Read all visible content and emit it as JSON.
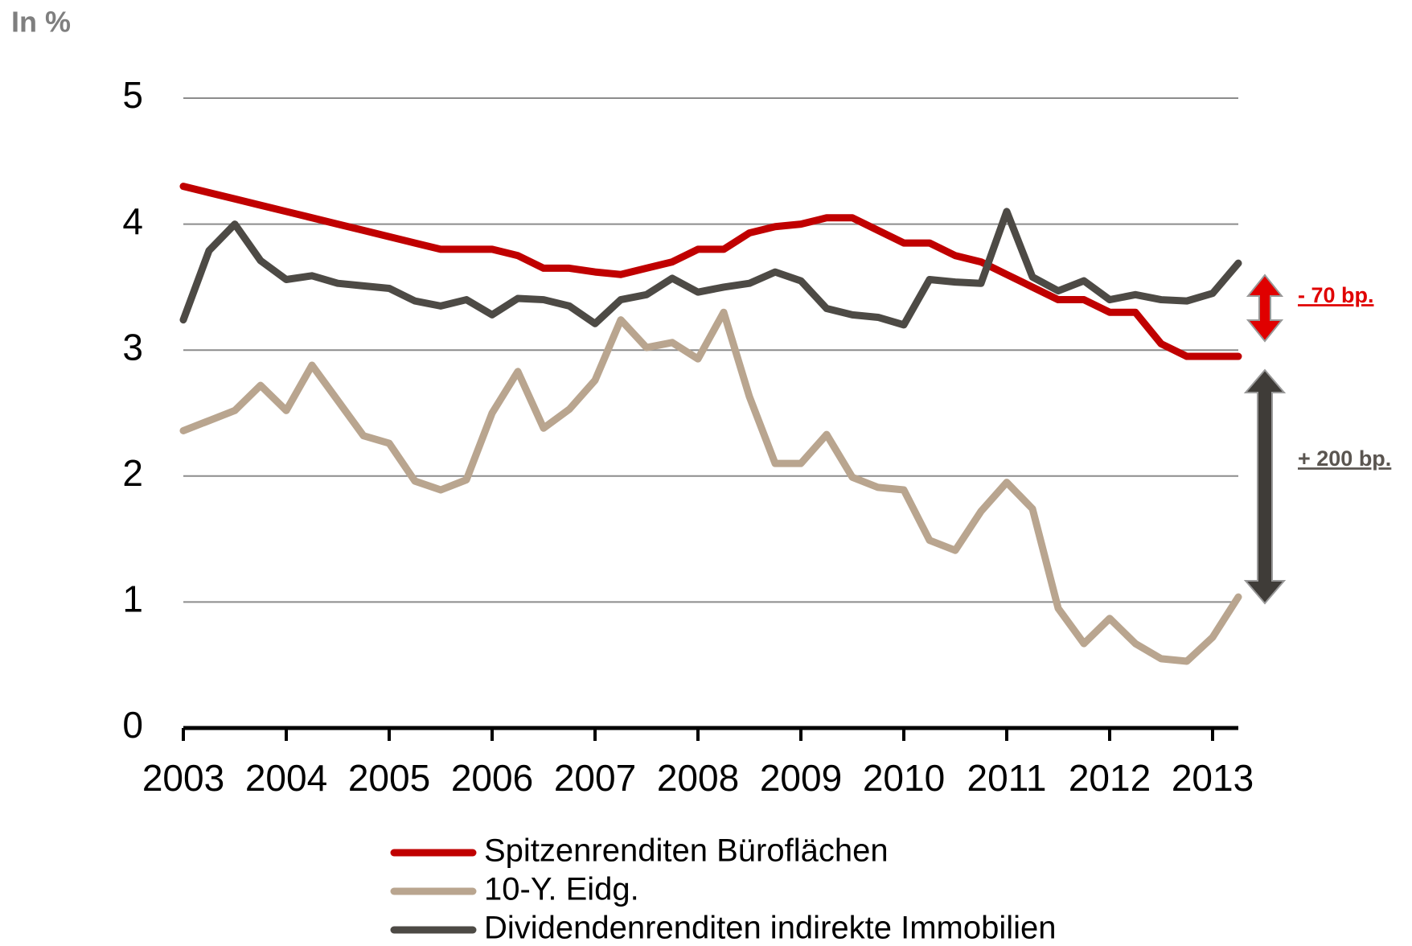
{
  "chart_data": {
    "type": "line",
    "title": "In %",
    "x": [
      2003,
      2003.25,
      2003.5,
      2003.75,
      2004,
      2004.25,
      2004.5,
      2004.75,
      2005,
      2005.25,
      2005.5,
      2005.75,
      2006,
      2006.25,
      2006.5,
      2006.75,
      2007,
      2007.25,
      2007.5,
      2007.75,
      2008,
      2008.25,
      2008.5,
      2008.75,
      2009,
      2009.25,
      2009.5,
      2009.75,
      2010,
      2010.25,
      2010.5,
      2010.75,
      2011,
      2011.25,
      2011.5,
      2011.75,
      2012,
      2012.25,
      2012.5,
      2012.75,
      2013,
      2013.25
    ],
    "series": [
      {
        "name": "Spitzenrenditen Büroflächen",
        "color": "#c00000",
        "values": [
          4.3,
          4.25,
          4.2,
          4.15,
          4.1,
          4.05,
          4.0,
          3.95,
          3.9,
          3.85,
          3.8,
          3.8,
          3.8,
          3.75,
          3.65,
          3.65,
          3.62,
          3.6,
          3.65,
          3.7,
          3.8,
          3.8,
          3.93,
          3.98,
          4.0,
          4.05,
          4.05,
          3.95,
          3.85,
          3.85,
          3.75,
          3.7,
          3.6,
          3.5,
          3.4,
          3.4,
          3.3,
          3.3,
          3.05,
          2.95,
          2.95,
          2.95
        ]
      },
      {
        "name": "10-Y. Eidg.",
        "color": "#b9a58f",
        "values": [
          2.36,
          2.44,
          2.52,
          2.72,
          2.52,
          2.88,
          2.6,
          2.32,
          2.26,
          1.96,
          1.89,
          1.97,
          2.5,
          2.83,
          2.38,
          2.53,
          2.76,
          3.24,
          3.02,
          3.06,
          2.93,
          3.3,
          2.63,
          2.1,
          2.1,
          2.33,
          1.99,
          1.91,
          1.89,
          1.49,
          1.41,
          1.72,
          1.95,
          1.74,
          0.95,
          0.67,
          0.87,
          0.67,
          0.55,
          0.53,
          0.72,
          1.04
        ]
      },
      {
        "name": "Dividendenrenditen indirekte Immobilien",
        "color": "#4d4a45",
        "values": [
          3.24,
          3.79,
          4.0,
          3.71,
          3.56,
          3.59,
          3.53,
          3.51,
          3.49,
          3.39,
          3.35,
          3.4,
          3.28,
          3.41,
          3.4,
          3.35,
          3.21,
          3.4,
          3.44,
          3.57,
          3.46,
          3.5,
          3.53,
          3.62,
          3.55,
          3.33,
          3.28,
          3.26,
          3.2,
          3.56,
          3.54,
          3.53,
          4.1,
          3.58,
          3.47,
          3.55,
          3.4,
          3.44,
          3.4,
          3.39,
          3.45,
          3.69
        ]
      }
    ],
    "xlim": [
      2003,
      2013.25
    ],
    "xticks": [
      2003,
      2004,
      2005,
      2006,
      2007,
      2008,
      2009,
      2010,
      2011,
      2012,
      2013
    ],
    "ylim": [
      0,
      5
    ],
    "yticks": [
      0,
      1,
      2,
      3,
      4,
      5
    ],
    "grid": true,
    "annotations": [
      "- 70 bp.",
      "+ 200 bp."
    ]
  }
}
